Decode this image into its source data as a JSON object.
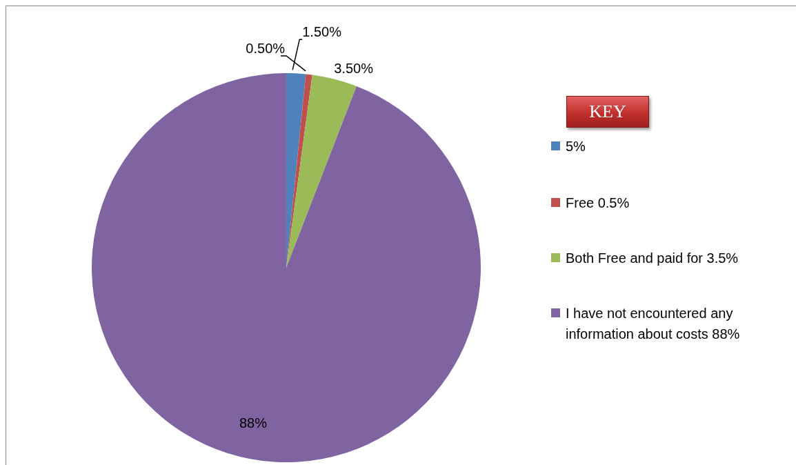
{
  "chart_data": {
    "type": "pie",
    "categories": [
      "5%",
      "Free 0.5%",
      "Both Free and paid for 3.5%",
      "I have not encountered any information about costs 88%"
    ],
    "values": [
      1.5,
      0.5,
      3.5,
      88
    ],
    "value_labels": [
      "1.50%",
      "0.50%",
      "3.50%",
      "88%"
    ],
    "colors": [
      "#4f81bd",
      "#c0504d",
      "#9bbb59",
      "#8064a2"
    ],
    "legend": "right",
    "annotations": [
      "KEY"
    ]
  }
}
